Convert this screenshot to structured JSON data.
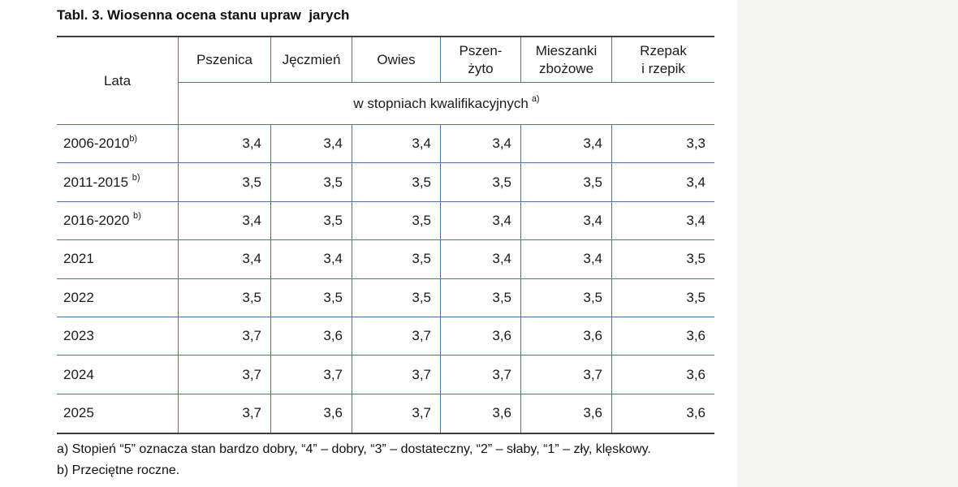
{
  "page": {
    "title": "Tabl. 3. Wiosenna ocena stanu upraw  jarych"
  },
  "table": {
    "row_header_label": "Lata",
    "columns": [
      "Pszenica",
      "Jęczmień",
      "Owies",
      "Pszen-\nżyto",
      "Mieszanki\nzbożowe",
      "Rzepak\ni rzepik"
    ],
    "unit_header": {
      "text": "w stopniach kwalifikacyjnych",
      "note_ref": "a)"
    },
    "rows": [
      {
        "label": "2006-2010",
        "note_ref": "b)",
        "values": [
          "3,4",
          "3,4",
          "3,4",
          "3,4",
          "3,4",
          "3,3"
        ]
      },
      {
        "label": "2011-2015 ",
        "note_ref": "b)",
        "values": [
          "3,5",
          "3,5",
          "3,5",
          "3,5",
          "3,5",
          "3,4"
        ]
      },
      {
        "label": "2016-2020 ",
        "note_ref": "b)",
        "values": [
          "3,4",
          "3,5",
          "3,5",
          "3,4",
          "3,4",
          "3,4"
        ]
      },
      {
        "label": "2021",
        "note_ref": "",
        "values": [
          "3,4",
          "3,4",
          "3,5",
          "3,4",
          "3,4",
          "3,5"
        ]
      },
      {
        "label": "2022",
        "note_ref": "",
        "values": [
          "3,5",
          "3,5",
          "3,5",
          "3,5",
          "3,5",
          "3,5"
        ]
      },
      {
        "label": "2023",
        "note_ref": "",
        "values": [
          "3,7",
          "3,6",
          "3,7",
          "3,6",
          "3,6",
          "3,6"
        ]
      },
      {
        "label": "2024",
        "note_ref": "",
        "values": [
          "3,7",
          "3,7",
          "3,7",
          "3,7",
          "3,7",
          "3,6"
        ]
      },
      {
        "label": "2025",
        "note_ref": "",
        "values": [
          "3,7",
          "3,6",
          "3,7",
          "3,6",
          "3,6",
          "3,6"
        ]
      }
    ]
  },
  "footnotes": [
    "a) Stopień “5” oznacza stan bardzo dobry, “4” – dobry, “3” – dostateczny, “2” – słaby, “1” – zły, klęskowy.",
    "b) Przeciętne roczne."
  ],
  "colors": {
    "border_blue": "#4473ae",
    "border_dark": "#3d3d3d",
    "text": "#1b1b1b",
    "side_panel_bg": "#f5f5f4"
  }
}
